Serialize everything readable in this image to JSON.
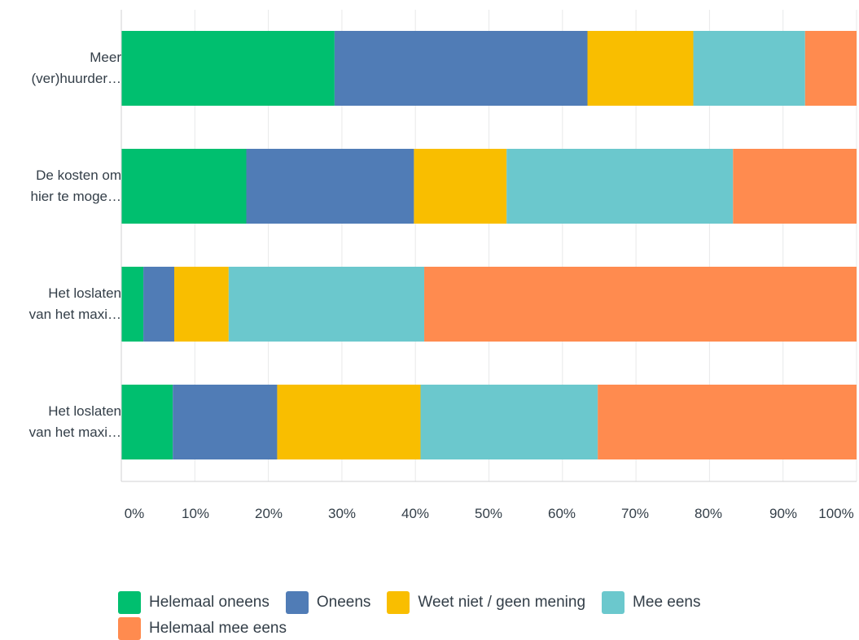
{
  "chart_data": {
    "type": "bar",
    "orientation": "horizontal",
    "stacked": true,
    "categories": [
      "Meer (ver)huurder…",
      "De kosten om hier te moge…",
      "Het loslaten van het maxi…",
      "Het loslaten van het maxi…"
    ],
    "category_lines": [
      [
        "Meer",
        "(ver)huurder…"
      ],
      [
        "De kosten om",
        "hier te moge…"
      ],
      [
        "Het loslaten",
        "van het maxi…"
      ],
      [
        "Het loslaten",
        "van het maxi…"
      ]
    ],
    "series": [
      {
        "name": "Helemaal oneens",
        "color": "#00bf6f",
        "values": [
          29,
          17,
          3,
          7
        ]
      },
      {
        "name": "Oneens",
        "color": "#507cb6",
        "values": [
          34.4,
          22.8,
          4.2,
          14.2
        ]
      },
      {
        "name": "Weet niet / geen mening",
        "color": "#f9be00",
        "values": [
          14.4,
          12.6,
          7.4,
          19.5
        ]
      },
      {
        "name": "Mee eens",
        "color": "#6bc8cd",
        "values": [
          15.2,
          30.8,
          26.6,
          24.1
        ]
      },
      {
        "name": "Helemaal mee eens",
        "color": "#ff8b4f",
        "values": [
          7.0,
          16.8,
          58.8,
          35.2
        ]
      }
    ],
    "x_ticks": [
      "0%",
      "10%",
      "20%",
      "30%",
      "40%",
      "50%",
      "60%",
      "70%",
      "80%",
      "90%",
      "100%"
    ],
    "xlim": [
      0,
      100
    ],
    "grid": true,
    "legend_position": "bottom"
  }
}
